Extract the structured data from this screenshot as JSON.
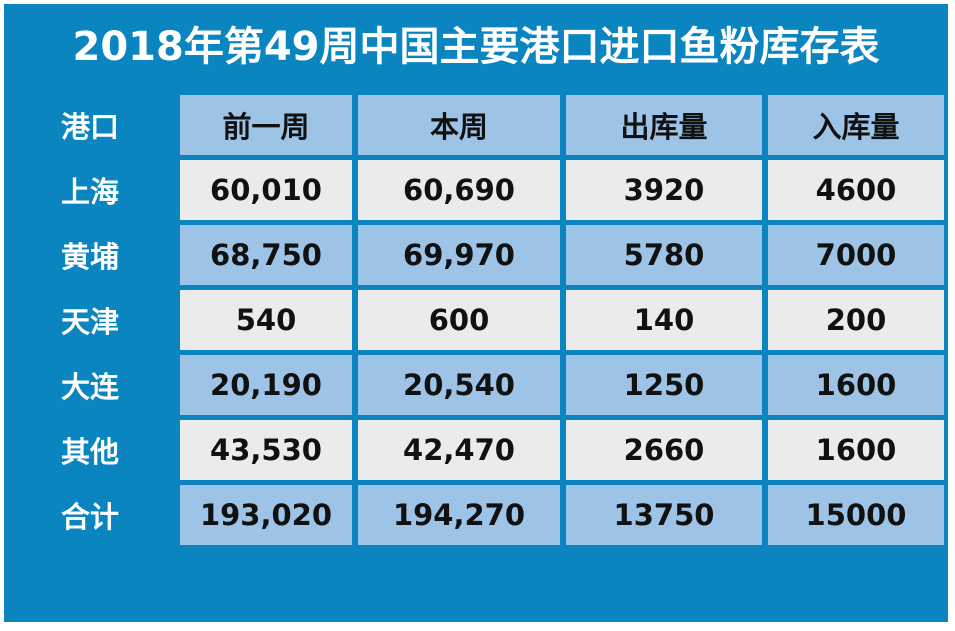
{
  "title": "2018年第49周中国主要港口进口鱼粉库存表",
  "table": {
    "header": [
      "港口",
      "前一周",
      "本周",
      "出库量",
      "入库量"
    ],
    "rows": [
      [
        "上海",
        "60,010",
        "60,690",
        "3920",
        "4600"
      ],
      [
        "黄埔",
        "68,750",
        "69,970",
        "5780",
        "7000"
      ],
      [
        "天津",
        "540",
        "600",
        "140",
        "200"
      ],
      [
        "大连",
        "20,190",
        "20,540",
        "1250",
        "1600"
      ],
      [
        "其他",
        "43,530",
        "42,470",
        "2660",
        "1600"
      ],
      [
        "合计",
        "193,020",
        "194,270",
        "13750",
        "15000"
      ]
    ]
  }
}
